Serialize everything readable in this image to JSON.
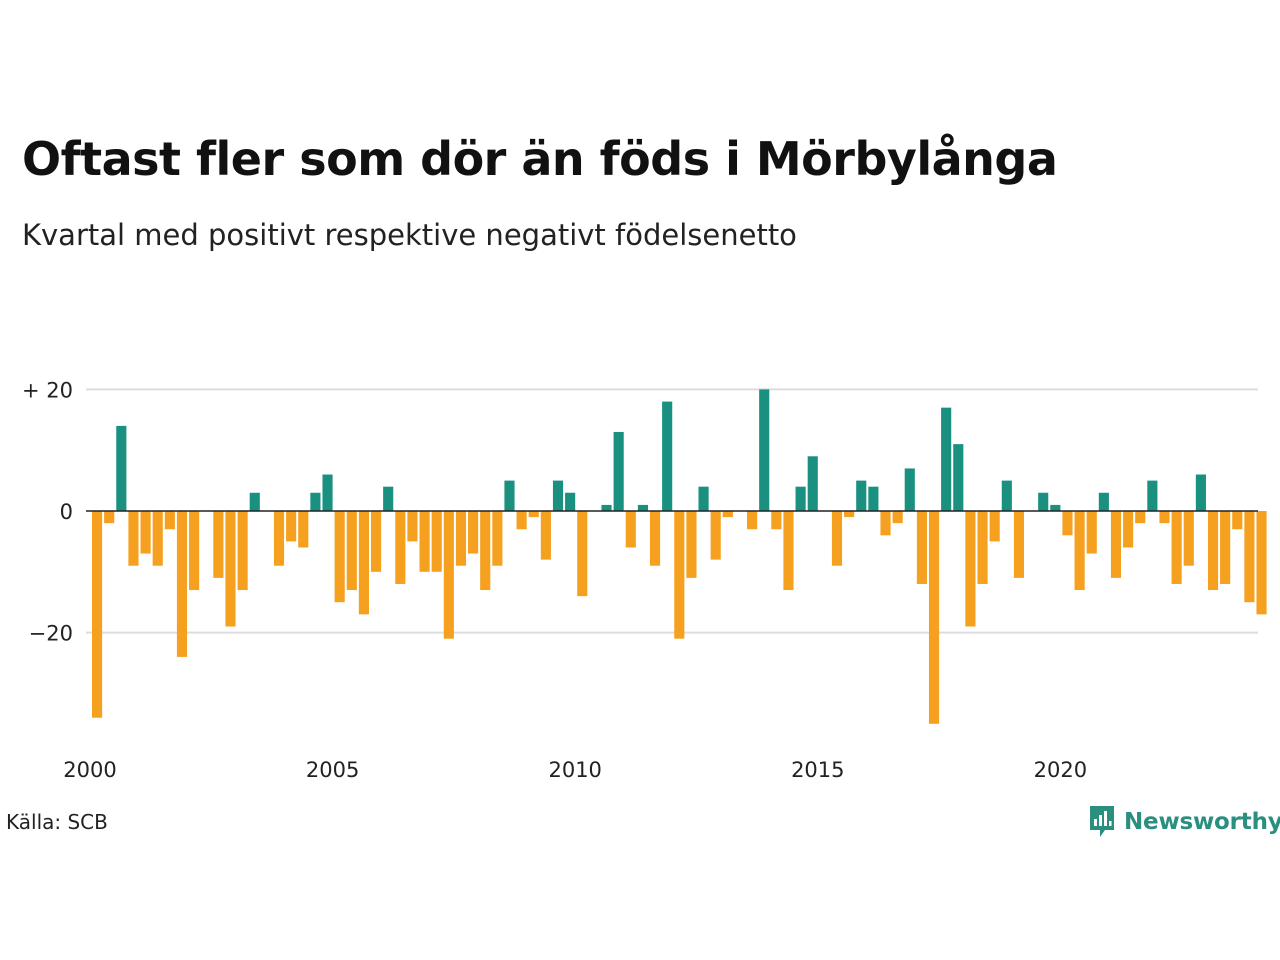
{
  "title": "Oftast fler som dör än föds i Mörbylånga",
  "subtitle": "Kvartal med positivt respektive negativt födelsenetto",
  "source": "Källa: SCB",
  "brand": {
    "name": "Newsworthy",
    "color": "#2a8f7f"
  },
  "colors": {
    "positive": "#1a9080",
    "negative": "#f5a01f",
    "grid": "#dddddd",
    "zero_line": "#222222"
  },
  "chart_data": {
    "type": "bar",
    "x_start_year": 2000,
    "periods_per_year": 4,
    "x_ticks": [
      2000,
      2005,
      2010,
      2015,
      2020
    ],
    "y_ticks": [
      {
        "value": 20,
        "label": "+ 20"
      },
      {
        "value": 0,
        "label": "0"
      },
      {
        "value": -20,
        "label": "−20"
      }
    ],
    "ylim": [
      -36,
      22
    ],
    "grid": true,
    "values": [
      -34,
      -2,
      14,
      -9,
      -7,
      -9,
      -3,
      -24,
      -13,
      0,
      -11,
      -19,
      -13,
      3,
      0,
      -9,
      -5,
      -6,
      3,
      6,
      -15,
      -13,
      -17,
      -10,
      4,
      -12,
      -5,
      -10,
      -10,
      -21,
      -9,
      -7,
      -13,
      -9,
      5,
      -3,
      -1,
      -8,
      5,
      3,
      -14,
      0,
      1,
      13,
      -6,
      1,
      -9,
      18,
      -21,
      -11,
      4,
      -8,
      -1,
      0,
      -3,
      20,
      -3,
      -13,
      4,
      9,
      0,
      -9,
      -1,
      5,
      4,
      -4,
      -2,
      7,
      -12,
      -35,
      17,
      11,
      -19,
      -12,
      -5,
      5,
      -11,
      0,
      3,
      1,
      -4,
      -13,
      -7,
      3,
      -11,
      -6,
      -2,
      5,
      -2,
      -12,
      -9,
      6,
      -13,
      -12,
      -3,
      -15,
      -17
    ]
  }
}
